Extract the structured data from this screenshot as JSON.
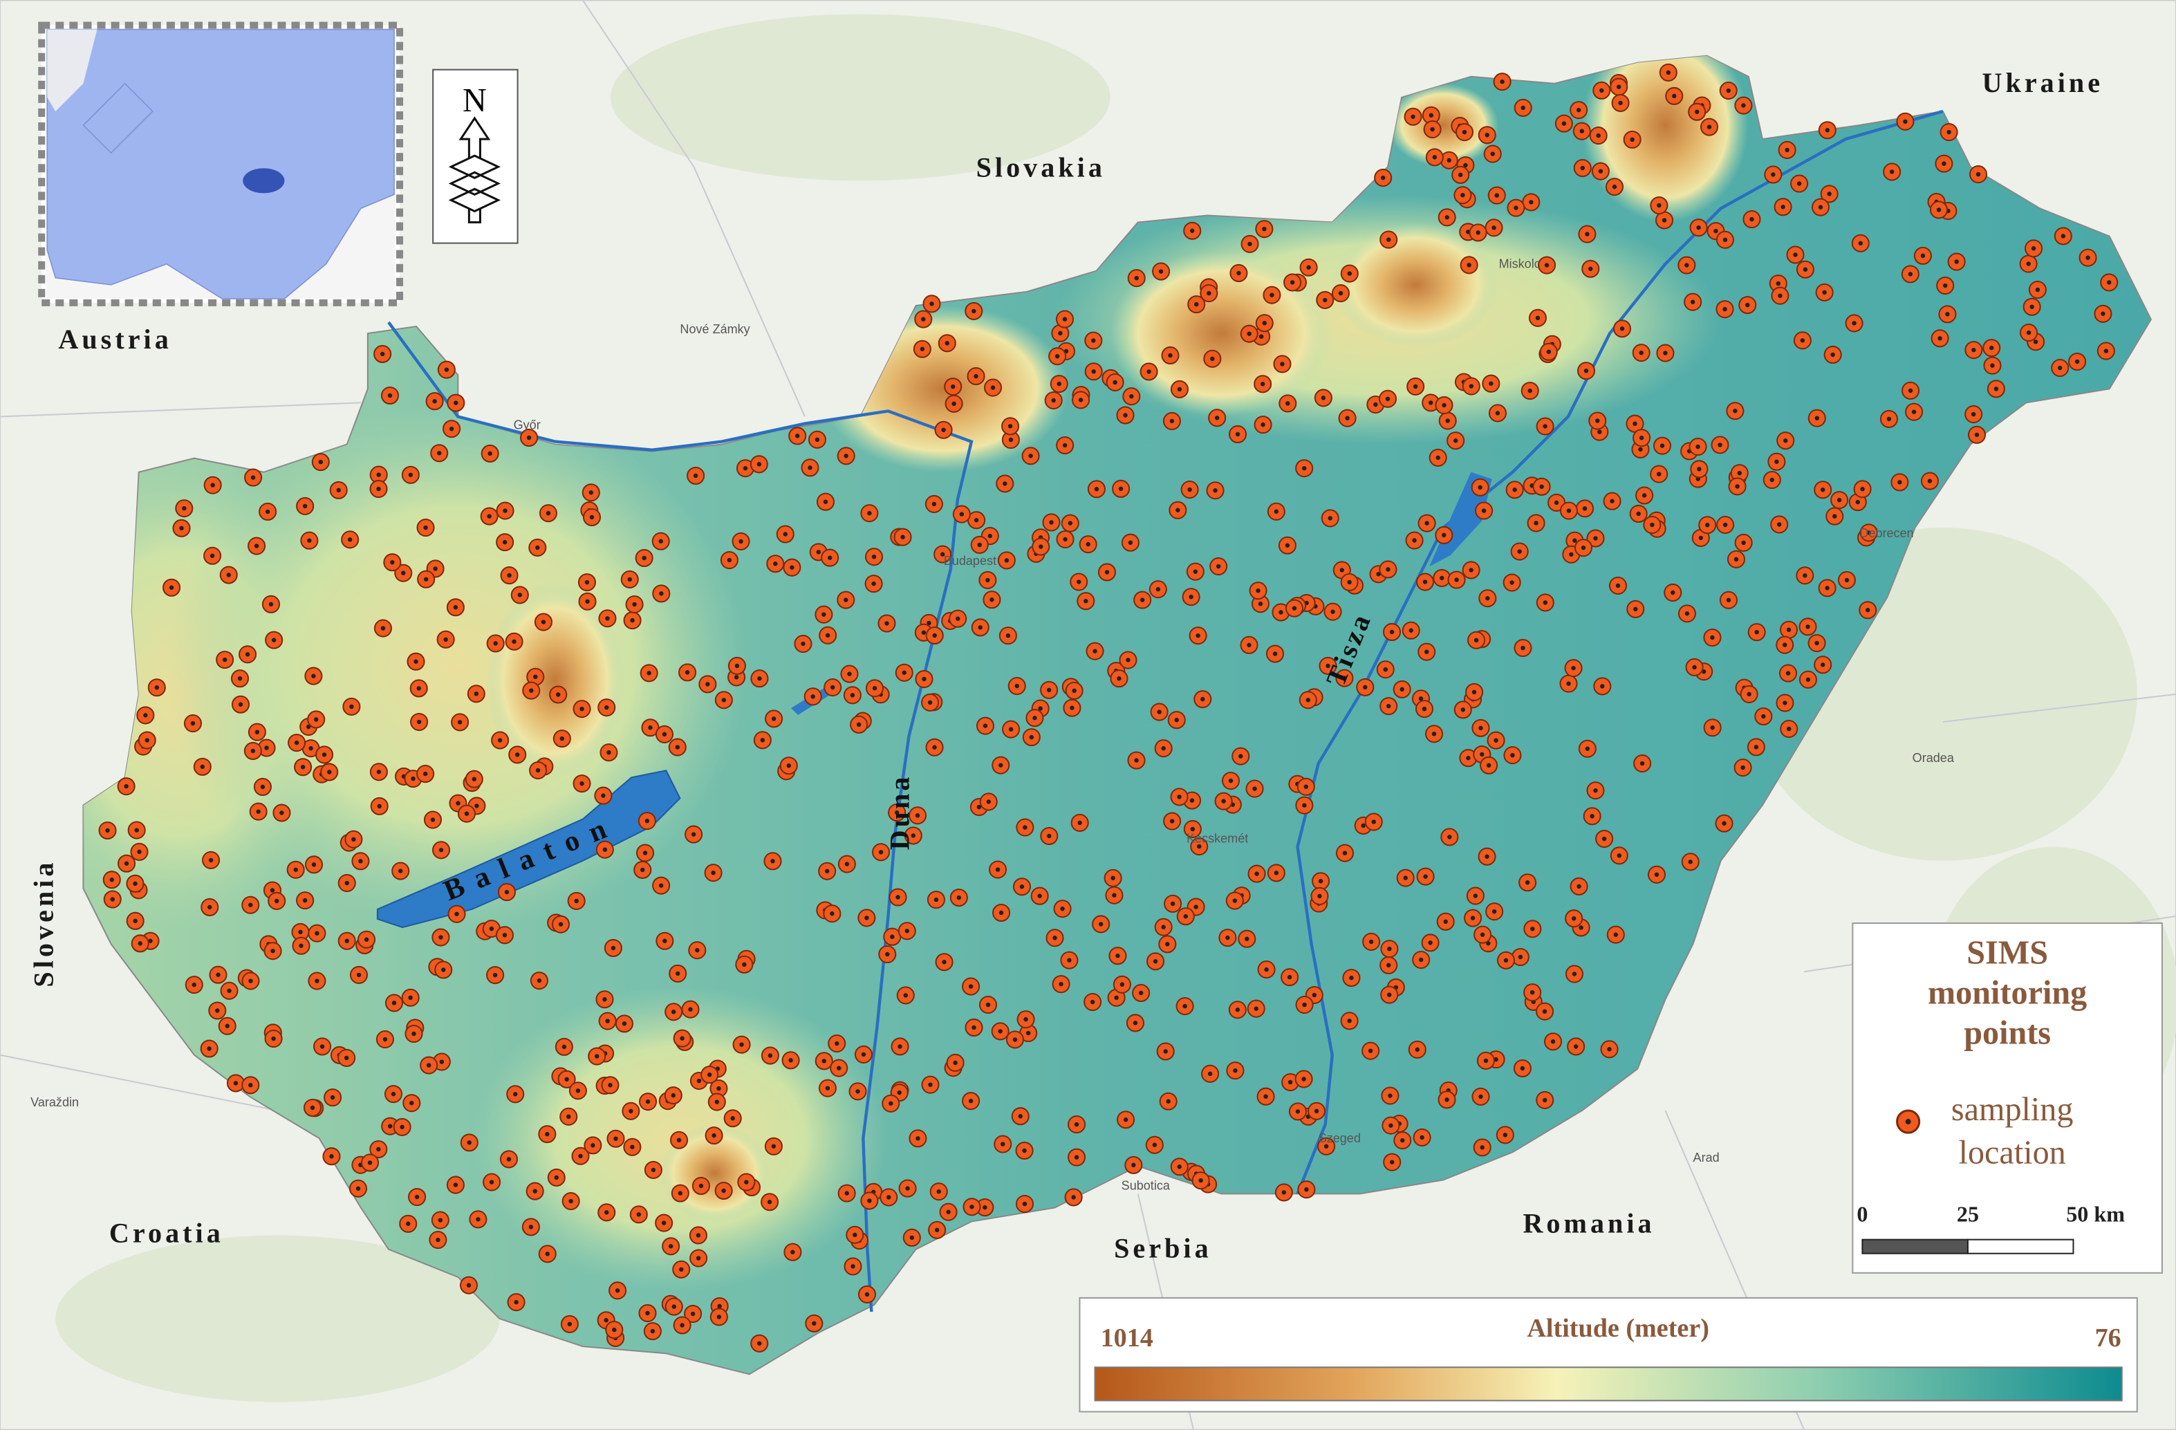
{
  "map": {
    "countries": {
      "slovakia": "Slovakia",
      "ukraine": "Ukraine",
      "austria": "Austria",
      "slovenia": "Slovenia",
      "croatia": "Croatia",
      "serbia": "Serbia",
      "romania": "Romania"
    },
    "rivers": {
      "duna": "Duna",
      "tisza": "Tisza"
    },
    "lake": "Balaton",
    "cities": [
      "Budapest",
      "Debrecen",
      "Szeged",
      "Miskolc",
      "Győr",
      "Kecskemét",
      "Nové Zámky",
      "Oradea",
      "Arad",
      "Subotica",
      "Varaždin"
    ],
    "north": "N",
    "legend": {
      "title": "SIMS monitoring points",
      "item": "sampling location"
    },
    "scale": {
      "ticks": [
        0,
        25,
        {
          "value": 50,
          "label": "50 km"
        }
      ]
    },
    "altitude": {
      "title": "Altitude (meter)",
      "max": 1014,
      "min": 76
    }
  }
}
